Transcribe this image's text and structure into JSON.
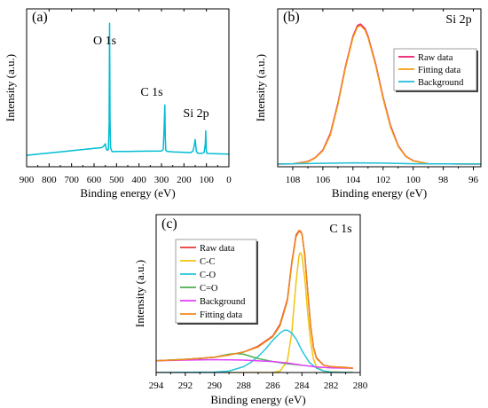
{
  "chart_data": [
    {
      "panel": "(a)",
      "type": "line",
      "xlabel": "Binding energy (eV)",
      "ylabel": "Intensity (a.u.)",
      "xlim": [
        900,
        0
      ],
      "x_reversed": true,
      "xticks": [
        "900",
        "800",
        "700",
        "600",
        "500",
        "400",
        "300",
        "200",
        "100",
        "0"
      ],
      "y_ticklabels_shown": false,
      "annotations": [
        {
          "text": "O 1s",
          "x": 531
        },
        {
          "text": "C 1s",
          "x": 284
        },
        {
          "text": "Si 2p",
          "x": 103
        }
      ],
      "series": [
        {
          "color": "#00bcd4",
          "x": [
            900,
            850,
            800,
            750,
            700,
            650,
            600,
            570,
            560,
            550,
            545,
            540,
            536,
            533,
            531,
            529,
            527,
            524,
            520,
            500,
            450,
            400,
            350,
            300,
            292,
            288,
            285,
            283,
            281,
            278,
            270,
            250,
            200,
            170,
            160,
            155,
            152,
            150,
            148,
            145,
            140,
            120,
            110,
            105,
            103,
            101,
            98,
            90,
            50,
            20,
            0
          ],
          "values": [
            8,
            8.8,
            9.6,
            10.4,
            11.2,
            12,
            12.8,
            13.2,
            13.8,
            16,
            12,
            11.5,
            12,
            30,
            100,
            35,
            14,
            12,
            10.5,
            10.6,
            10.7,
            10.8,
            10.9,
            11,
            12,
            28,
            43,
            20,
            12,
            10.8,
            10.6,
            10.3,
            10,
            9.8,
            11,
            14,
            17,
            19,
            16,
            11,
            9.5,
            9.3,
            10,
            16,
            25,
            12,
            9.4,
            9.2,
            9,
            8.9,
            8.8
          ]
        }
      ]
    },
    {
      "panel": "(b)",
      "type": "line",
      "title": "Si 2p",
      "xlabel": "Binding energy (eV)",
      "ylabel": "Intensity (a.u.)",
      "xlim": [
        109,
        95.5
      ],
      "x_reversed": true,
      "xticks": [
        "108",
        "106",
        "104",
        "102",
        "100",
        "98",
        "96"
      ],
      "y_ticklabels_shown": false,
      "legend_position": "top-right",
      "series": [
        {
          "name": "Raw data",
          "color": "#e8196f",
          "x": [
            109,
            108,
            107,
            106.5,
            106,
            105.5,
            105,
            104.5,
            104,
            103.7,
            103.5,
            103.2,
            103,
            102.5,
            102,
            101.5,
            101,
            100.5,
            100,
            99,
            98,
            97,
            96,
            95.5
          ],
          "values": [
            1.8,
            1.9,
            3.5,
            6,
            11,
            22,
            42,
            66,
            86,
            93,
            94,
            91,
            86,
            68,
            46,
            27,
            14,
            7,
            4,
            2,
            1.9,
            1.8,
            1.8,
            1.8
          ]
        },
        {
          "name": "Fitting data",
          "color": "#f39c12",
          "x": [
            109,
            108,
            107,
            106.5,
            106,
            105.5,
            105,
            104.5,
            104,
            103.7,
            103.5,
            103.2,
            103,
            102.5,
            102,
            101.5,
            101,
            100.5,
            100,
            99,
            98,
            97,
            96,
            95.5
          ],
          "values": [
            1.8,
            1.9,
            3.3,
            5.8,
            10.5,
            21,
            41,
            65,
            85,
            92,
            93,
            90,
            85,
            67,
            45,
            26,
            13.5,
            6.8,
            3.8,
            2,
            1.9,
            1.8,
            1.8,
            1.8
          ]
        },
        {
          "name": "Background",
          "color": "#1fbfd6",
          "x": [
            109,
            106,
            104,
            102,
            100,
            98,
            95.5
          ],
          "values": [
            1.8,
            2.3,
            2.6,
            2.4,
            2.0,
            1.9,
            1.8
          ]
        }
      ]
    },
    {
      "panel": "(c)",
      "type": "line",
      "title": "C 1s",
      "xlabel": "Binding energy (eV)",
      "ylabel": "Intensity (a.u.)",
      "xlim": [
        294,
        280
      ],
      "x_reversed": true,
      "xticks": [
        "294",
        "292",
        "290",
        "288",
        "286",
        "284",
        "282",
        "280"
      ],
      "y_ticklabels_shown": false,
      "legend_position": "top-left",
      "series": [
        {
          "name": "Raw data",
          "color": "#e53935",
          "x": [
            294,
            292,
            290,
            289,
            288,
            287,
            286,
            285.5,
            285,
            284.7,
            284.4,
            284.2,
            284,
            283.8,
            283.6,
            283.4,
            283.2,
            283,
            282.5,
            282,
            281,
            280.5
          ],
          "values": [
            8,
            9,
            10.5,
            12,
            14,
            18,
            25,
            33,
            50,
            75,
            94,
            97,
            95,
            80,
            55,
            32,
            17,
            10,
            5,
            4,
            3.5,
            3
          ]
        },
        {
          "name": "C-C",
          "color": "#f1c40f",
          "x": [
            294,
            286,
            285.5,
            285,
            284.7,
            284.4,
            284.2,
            284.1,
            284,
            283.8,
            283.6,
            283.4,
            283.2,
            283,
            282.5,
            282,
            280.5
          ],
          "values": [
            0,
            0,
            1,
            8,
            27,
            62,
            80,
            82,
            80,
            64,
            40,
            21,
            9,
            4,
            1,
            0.5,
            0
          ]
        },
        {
          "name": "C-O",
          "color": "#26c6da",
          "x": [
            294,
            290,
            289,
            288,
            287.5,
            287,
            286.5,
            286,
            285.5,
            285.2,
            285,
            284.7,
            284.4,
            284,
            283.5,
            283,
            282.5,
            282,
            280.5
          ],
          "values": [
            0,
            0.3,
            1,
            4,
            7,
            11,
            16,
            22,
            27,
            29,
            29,
            27,
            23,
            15,
            7,
            3,
            1,
            0.3,
            0
          ]
        },
        {
          "name": "C=O",
          "color": "#4caf50",
          "x": [
            294,
            291,
            290,
            289.5,
            289,
            288.5,
            288,
            287.5,
            287,
            286,
            285,
            284
          ],
          "values": [
            8,
            9.5,
            10.5,
            11.5,
            12.5,
            13,
            12.5,
            11,
            9.5,
            7.5,
            6,
            5
          ]
        },
        {
          "name": "Background",
          "color": "#e040fb",
          "x": [
            294,
            292,
            290,
            288,
            286,
            285,
            284,
            283,
            282,
            280.5
          ],
          "values": [
            8,
            8.5,
            8.8,
            8.5,
            7.5,
            6.5,
            5,
            3.8,
            3.2,
            3
          ]
        },
        {
          "name": "Fitting data",
          "color": "#ef8a1a",
          "x": [
            294,
            292,
            290,
            289,
            288,
            287,
            286,
            285.5,
            285,
            284.7,
            284.4,
            284.2,
            284.1,
            284,
            283.8,
            283.6,
            283.4,
            283.2,
            283,
            282.5,
            282,
            280.5
          ],
          "values": [
            8,
            9,
            10.5,
            12,
            14,
            17.5,
            24.5,
            32,
            49,
            74,
            93,
            96.5,
            97,
            95,
            79,
            54,
            31,
            16.5,
            9.5,
            5,
            4,
            3
          ]
        }
      ]
    }
  ]
}
